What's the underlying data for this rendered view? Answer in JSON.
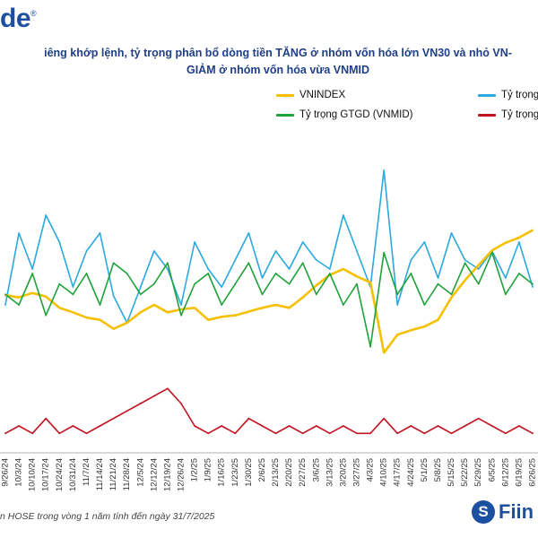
{
  "brand": {
    "text": "de",
    "mark": "®"
  },
  "title": {
    "line1": "iêng khớp lệnh, tỷ trọng phân bổ dòng tiền TĂNG ở nhóm vốn hóa lớn VN30 và nhỏ VN-",
    "line2": "GIẢM ở nhóm vốn hóa vừa VNMID"
  },
  "legend": [
    {
      "label": "VNINDEX",
      "color": "#f5c000"
    },
    {
      "label": "Tỷ trọng",
      "color": "#2ba8e0"
    },
    {
      "label": "Tỷ trọng GTGD (VNMID)",
      "color": "#1fa23a"
    },
    {
      "label": "Tỷ trọng",
      "color": "#c0121f"
    }
  ],
  "source": "n HOSE trong vòng 1 năm tính đến ngày 31/7/2025",
  "logo": {
    "mark": "S",
    "word": "Fiin"
  },
  "chart_data": {
    "type": "line",
    "x": [
      "9/26/24",
      "10/3/24",
      "10/10/24",
      "10/17/24",
      "10/24/24",
      "10/31/24",
      "11/7/24",
      "11/14/24",
      "11/21/24",
      "11/28/24",
      "12/5/24",
      "12/12/24",
      "12/19/24",
      "12/26/24",
      "1/2/25",
      "1/9/25",
      "1/16/25",
      "1/23/25",
      "1/30/25",
      "2/6/25",
      "2/13/25",
      "2/20/25",
      "2/27/25",
      "3/6/25",
      "3/13/25",
      "3/20/25",
      "3/27/25",
      "4/3/25",
      "4/10/25",
      "4/17/25",
      "4/24/25",
      "5/1/25",
      "5/8/25",
      "5/15/25",
      "5/22/25",
      "5/29/25",
      "6/5/25",
      "6/12/25",
      "6/19/25",
      "6/26/25"
    ],
    "tick_labels": [
      "9/26/24",
      "10/3/24",
      "10/10/24",
      "10/17/24",
      "10/24/24",
      "10/31/24",
      "11/7/24",
      "11/14/24",
      "11/21/24",
      "11/28/24",
      "12/5/24",
      "12/12/24",
      "12/19/24",
      "12/26/24",
      "1/2/25",
      "1/9/25",
      "1/16/25",
      "1/23/25",
      "1/30/25",
      "2/6/25",
      "2/13/25",
      "2/20/25",
      "2/27/25",
      "3/6/25",
      "3/13/25",
      "3/20/25",
      "3/27/25",
      "4/3/25",
      "4/10/25",
      "4/17/25",
      "4/24/25",
      "5/1/25",
      "5/8/25",
      "5/15/25",
      "5/22/25",
      "5/29/25",
      "6/5/25",
      "6/12/25",
      "6/19/25",
      "6/26/25"
    ],
    "series": [
      {
        "name": "VNINDEX",
        "color": "#f5c000",
        "values": [
          1285,
          1282,
          1288,
          1283,
          1268,
          1262,
          1255,
          1252,
          1240,
          1248,
          1262,
          1272,
          1262,
          1266,
          1268,
          1252,
          1256,
          1258,
          1263,
          1268,
          1272,
          1268,
          1282,
          1298,
          1312,
          1320,
          1310,
          1302,
          1208,
          1232,
          1238,
          1243,
          1252,
          1282,
          1305,
          1325,
          1345,
          1355,
          1362,
          1372
        ]
      },
      {
        "name": "Tỷ trọng",
        "color": "#2ba8e0",
        "values": [
          40,
          48,
          44,
          50,
          47,
          42,
          46,
          48,
          41,
          38,
          42,
          46,
          44,
          40,
          47,
          44,
          42,
          45,
          48,
          43,
          46,
          44,
          47,
          45,
          44,
          50,
          46,
          42,
          55,
          40,
          45,
          47,
          43,
          48,
          45,
          44,
          46,
          43,
          47,
          42
        ]
      },
      {
        "name": "Tỷ trọng GTGD (VNMID)",
        "color": "#1fa23a",
        "values": [
          33,
          32,
          35,
          31,
          34,
          33,
          35,
          32,
          36,
          35,
          33,
          34,
          36,
          31,
          34,
          35,
          32,
          34,
          36,
          33,
          35,
          34,
          36,
          33,
          35,
          32,
          34,
          28,
          37,
          33,
          35,
          32,
          34,
          33,
          36,
          34,
          37,
          33,
          35,
          34
        ]
      },
      {
        "name": "Tỷ trọng",
        "color": "#c0121f",
        "values": [
          12,
          13,
          12,
          14,
          12,
          13,
          12,
          13,
          14,
          15,
          16,
          17,
          18,
          16,
          13,
          12,
          13,
          12,
          14,
          13,
          12,
          13,
          12,
          13,
          12,
          13,
          12,
          12,
          14,
          12,
          13,
          12,
          13,
          12,
          13,
          14,
          13,
          12,
          13,
          12
        ]
      }
    ],
    "title": "",
    "xlabel": "",
    "ylabel": "",
    "legend_position": "top",
    "grid": false
  }
}
